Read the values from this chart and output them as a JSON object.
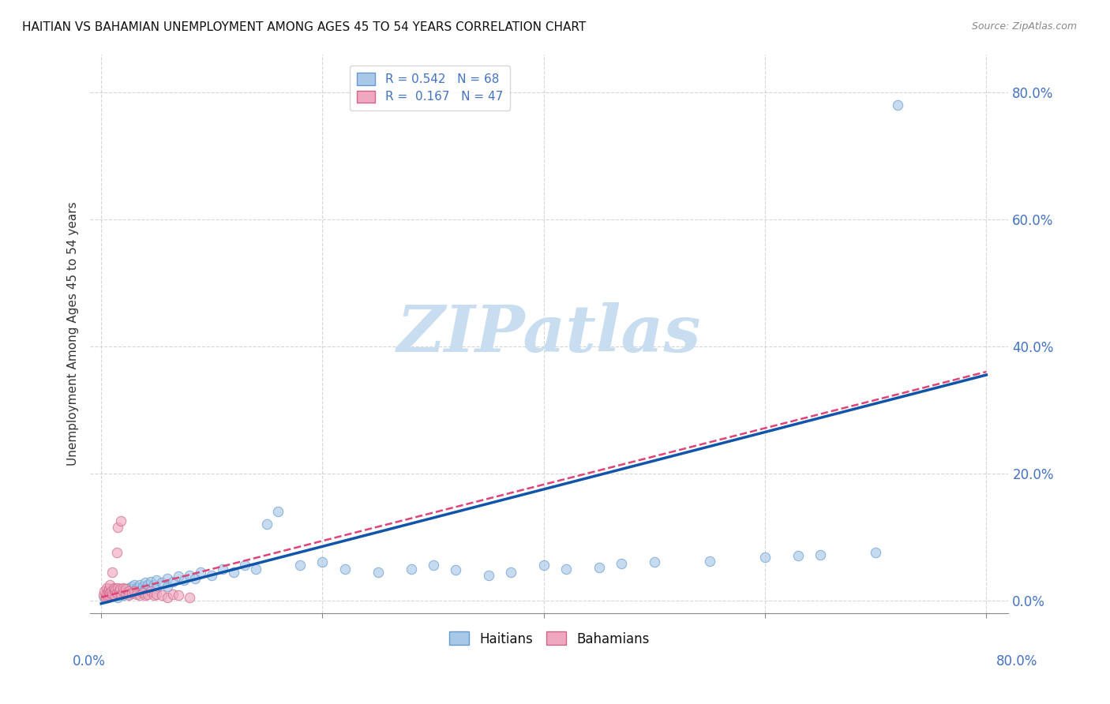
{
  "title": "HAITIAN VS BAHAMIAN UNEMPLOYMENT AMONG AGES 45 TO 54 YEARS CORRELATION CHART",
  "source": "Source: ZipAtlas.com",
  "xlabel_ticks": [
    "0.0%",
    "20.0%",
    "40.0%",
    "60.0%",
    "80.0%"
  ],
  "ylabel_ticks": [
    "0.0%",
    "20.0%",
    "40.0%",
    "60.0%",
    "80.0%"
  ],
  "xlabel_vals": [
    0.0,
    0.2,
    0.4,
    0.6,
    0.8
  ],
  "ylabel_vals": [
    0.0,
    0.2,
    0.4,
    0.6,
    0.8
  ],
  "xmin": -0.01,
  "xmax": 0.82,
  "ymin": -0.02,
  "ymax": 0.86,
  "watermark": "ZIPatlas",
  "scatter_blue": {
    "color": "#a8c8e8",
    "edgecolor": "#6699cc",
    "alpha": 0.65,
    "size": 80,
    "points": [
      [
        0.003,
        0.005
      ],
      [
        0.005,
        0.008
      ],
      [
        0.007,
        0.006
      ],
      [
        0.008,
        0.012
      ],
      [
        0.01,
        0.01
      ],
      [
        0.012,
        0.008
      ],
      [
        0.013,
        0.015
      ],
      [
        0.015,
        0.012
      ],
      [
        0.015,
        0.005
      ],
      [
        0.017,
        0.015
      ],
      [
        0.018,
        0.01
      ],
      [
        0.02,
        0.018
      ],
      [
        0.02,
        0.008
      ],
      [
        0.022,
        0.015
      ],
      [
        0.023,
        0.012
      ],
      [
        0.025,
        0.02
      ],
      [
        0.025,
        0.01
      ],
      [
        0.027,
        0.018
      ],
      [
        0.028,
        0.022
      ],
      [
        0.03,
        0.025
      ],
      [
        0.03,
        0.012
      ],
      [
        0.032,
        0.02
      ],
      [
        0.035,
        0.025
      ],
      [
        0.035,
        0.015
      ],
      [
        0.038,
        0.022
      ],
      [
        0.04,
        0.028
      ],
      [
        0.04,
        0.018
      ],
      [
        0.042,
        0.025
      ],
      [
        0.045,
        0.03
      ],
      [
        0.048,
        0.025
      ],
      [
        0.05,
        0.032
      ],
      [
        0.05,
        0.02
      ],
      [
        0.055,
        0.028
      ],
      [
        0.06,
        0.035
      ],
      [
        0.06,
        0.022
      ],
      [
        0.065,
        0.03
      ],
      [
        0.07,
        0.038
      ],
      [
        0.075,
        0.032
      ],
      [
        0.08,
        0.04
      ],
      [
        0.085,
        0.035
      ],
      [
        0.09,
        0.045
      ],
      [
        0.1,
        0.04
      ],
      [
        0.11,
        0.05
      ],
      [
        0.12,
        0.045
      ],
      [
        0.13,
        0.055
      ],
      [
        0.14,
        0.05
      ],
      [
        0.15,
        0.12
      ],
      [
        0.16,
        0.14
      ],
      [
        0.18,
        0.055
      ],
      [
        0.2,
        0.06
      ],
      [
        0.22,
        0.05
      ],
      [
        0.25,
        0.045
      ],
      [
        0.28,
        0.05
      ],
      [
        0.3,
        0.055
      ],
      [
        0.32,
        0.048
      ],
      [
        0.35,
        0.04
      ],
      [
        0.37,
        0.045
      ],
      [
        0.4,
        0.055
      ],
      [
        0.42,
        0.05
      ],
      [
        0.45,
        0.052
      ],
      [
        0.47,
        0.058
      ],
      [
        0.5,
        0.06
      ],
      [
        0.55,
        0.062
      ],
      [
        0.6,
        0.068
      ],
      [
        0.63,
        0.07
      ],
      [
        0.65,
        0.072
      ],
      [
        0.7,
        0.075
      ],
      [
        0.72,
        0.78
      ]
    ]
  },
  "scatter_pink": {
    "color": "#f0a8c0",
    "edgecolor": "#cc6688",
    "alpha": 0.65,
    "size": 80,
    "points": [
      [
        0.002,
        0.008
      ],
      [
        0.003,
        0.015
      ],
      [
        0.004,
        0.005
      ],
      [
        0.005,
        0.02
      ],
      [
        0.005,
        0.01
      ],
      [
        0.006,
        0.015
      ],
      [
        0.006,
        0.005
      ],
      [
        0.007,
        0.018
      ],
      [
        0.007,
        0.008
      ],
      [
        0.008,
        0.012
      ],
      [
        0.008,
        0.025
      ],
      [
        0.009,
        0.015
      ],
      [
        0.01,
        0.01
      ],
      [
        0.01,
        0.045
      ],
      [
        0.011,
        0.02
      ],
      [
        0.012,
        0.015
      ],
      [
        0.012,
        0.008
      ],
      [
        0.013,
        0.018
      ],
      [
        0.014,
        0.012
      ],
      [
        0.014,
        0.075
      ],
      [
        0.015,
        0.02
      ],
      [
        0.015,
        0.115
      ],
      [
        0.016,
        0.015
      ],
      [
        0.017,
        0.018
      ],
      [
        0.018,
        0.01
      ],
      [
        0.018,
        0.125
      ],
      [
        0.02,
        0.015
      ],
      [
        0.02,
        0.02
      ],
      [
        0.022,
        0.012
      ],
      [
        0.022,
        0.018
      ],
      [
        0.025,
        0.015
      ],
      [
        0.025,
        0.008
      ],
      [
        0.028,
        0.012
      ],
      [
        0.03,
        0.015
      ],
      [
        0.032,
        0.01
      ],
      [
        0.035,
        0.008
      ],
      [
        0.038,
        0.012
      ],
      [
        0.04,
        0.008
      ],
      [
        0.042,
        0.01
      ],
      [
        0.045,
        0.015
      ],
      [
        0.048,
        0.008
      ],
      [
        0.05,
        0.01
      ],
      [
        0.055,
        0.008
      ],
      [
        0.06,
        0.005
      ],
      [
        0.065,
        0.01
      ],
      [
        0.07,
        0.008
      ],
      [
        0.08,
        0.005
      ]
    ]
  },
  "blue_line": {
    "color": "#1155aa",
    "linewidth": 2.5,
    "x_start": 0.0,
    "y_start": -0.005,
    "x_end": 0.8,
    "y_end": 0.355
  },
  "pink_line": {
    "color": "#dd4477",
    "linewidth": 1.8,
    "linestyle": "--",
    "x_start": 0.0,
    "y_start": 0.005,
    "x_end": 0.8,
    "y_end": 0.36
  },
  "grid_color": "#bbbbbb",
  "grid_linestyle": "--",
  "grid_alpha": 0.6,
  "bg_color": "#ffffff",
  "title_fontsize": 11,
  "axis_label_color": "#4472c4",
  "ylabel": "Unemployment Among Ages 45 to 54 years",
  "watermark_color": "#c8ddf0",
  "watermark_fontsize": 60
}
